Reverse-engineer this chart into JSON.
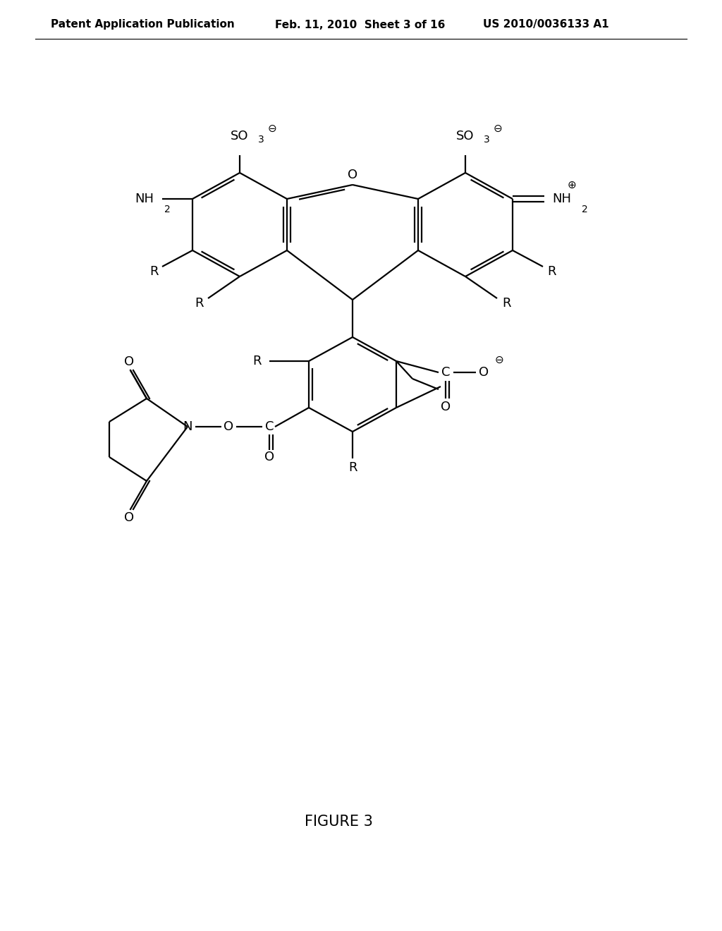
{
  "title_left": "Patent Application Publication",
  "title_mid": "Feb. 11, 2010  Sheet 3 of 16",
  "title_right": "US 2010/0036133 A1",
  "figure_label": "FIGURE 3",
  "bg_color": "#ffffff",
  "line_color": "#000000",
  "text_color": "#000000",
  "lw": 1.6,
  "header_fontsize": 11,
  "label_fontsize": 13,
  "figure_label_fontsize": 15
}
